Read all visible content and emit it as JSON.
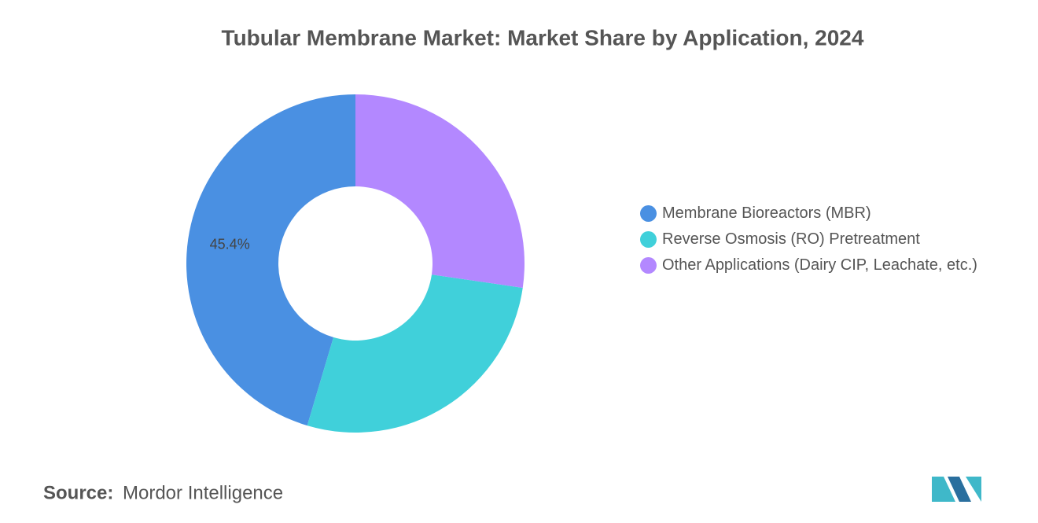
{
  "chart_data": {
    "type": "donut",
    "title": "Tubular Membrane Market: Market Share by Application, 2024",
    "categories": [
      "Membrane Bioreactors (MBR)",
      "Reverse Osmosis (RO) Pretreatment",
      "Other Applications (Dairy CIP, Leachate, etc.)"
    ],
    "values": [
      45.4,
      27.3,
      27.3
    ],
    "value_labels": [
      "45.4%",
      null,
      null
    ],
    "colors": [
      "#4a90e2",
      "#40d0da",
      "#b388ff"
    ],
    "legend": "right"
  },
  "source": {
    "label": "Source:",
    "text": "Mordor Intelligence"
  }
}
